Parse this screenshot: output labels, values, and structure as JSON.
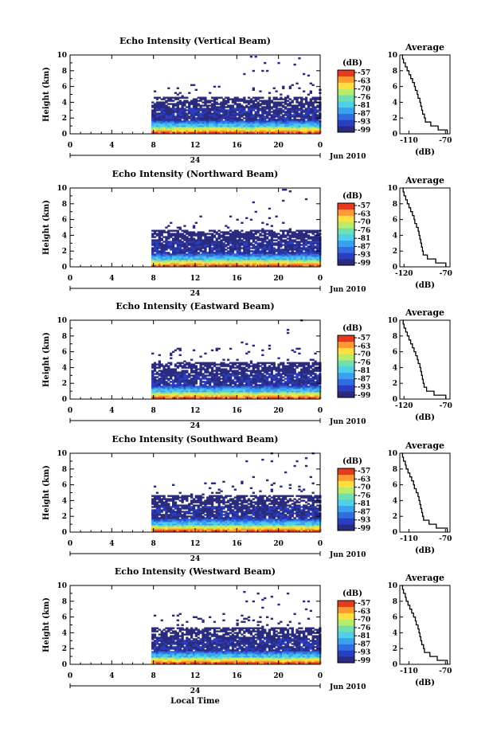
{
  "chart_data": [
    {
      "type": "heatmap",
      "title": "Echo Intensity (Vertical Beam)",
      "ylabel": "Height (km)",
      "xlim": [
        0,
        24
      ],
      "ylim": [
        0,
        10
      ],
      "x_ticks": [
        "0",
        "4",
        "8",
        "12",
        "16",
        "20",
        "0"
      ],
      "y_ticks": [
        "0",
        "2",
        "4",
        "6",
        "8",
        "10"
      ],
      "date_center": "24",
      "date_label": "Jun 2010",
      "colorbar": {
        "unit": "(dB)",
        "ticks": [
          "-57",
          "-63",
          "-70",
          "-76",
          "-81",
          "-87",
          "-93",
          "-99"
        ]
      },
      "profile": {
        "title": "Average",
        "xlabel": "(dB)",
        "x_ticks": [
          "-110",
          "-70"
        ],
        "xlim": [
          -120,
          -65
        ],
        "heights": [
          0,
          0.5,
          1,
          1.5,
          2,
          2.5,
          3,
          3.5,
          4,
          4.5,
          5,
          5.5,
          6,
          6.5,
          7,
          7.5,
          8,
          8.5,
          9,
          9.5,
          10
        ],
        "values": [
          -68,
          -78,
          -86,
          -92,
          -93,
          -95,
          -96,
          -97,
          -98,
          -100,
          -101,
          -103,
          -104,
          -106,
          -108,
          -110,
          -112,
          -114,
          -116,
          -117,
          -118
        ]
      }
    },
    {
      "type": "heatmap",
      "title": "Echo Intensity (Northward Beam)",
      "ylabel": "Height (km)",
      "xlim": [
        0,
        24
      ],
      "ylim": [
        0,
        10
      ],
      "x_ticks": [
        "0",
        "4",
        "8",
        "12",
        "16",
        "20",
        "0"
      ],
      "y_ticks": [
        "0",
        "2",
        "4",
        "6",
        "8",
        "10"
      ],
      "date_center": "24",
      "date_label": "Jun 2010",
      "colorbar": {
        "unit": "(dB)",
        "ticks": [
          "-57",
          "-63",
          "-70",
          "-76",
          "-81",
          "-87",
          "-93",
          "-99"
        ]
      },
      "profile": {
        "title": "Average",
        "xlabel": "(dB)",
        "x_ticks": [
          "-120",
          "-70"
        ],
        "xlim": [
          -125,
          -65
        ],
        "heights": [
          0,
          0.5,
          1,
          1.5,
          2,
          2.5,
          3,
          3.5,
          4,
          4.5,
          5,
          5.5,
          6,
          6.5,
          7,
          7.5,
          8,
          8.5,
          9,
          9.5,
          10
        ],
        "values": [
          -70,
          -82,
          -92,
          -97,
          -98,
          -99,
          -100,
          -101,
          -102,
          -103,
          -105,
          -107,
          -108,
          -110,
          -112,
          -114,
          -116,
          -118,
          -120,
          -121,
          -122
        ]
      }
    },
    {
      "type": "heatmap",
      "title": "Echo Intensity (Eastward Beam)",
      "ylabel": "Height (km)",
      "xlim": [
        0,
        24
      ],
      "ylim": [
        0,
        10
      ],
      "x_ticks": [
        "0",
        "4",
        "8",
        "12",
        "16",
        "20",
        "0"
      ],
      "y_ticks": [
        "0",
        "2",
        "4",
        "6",
        "8",
        "10"
      ],
      "date_center": "24",
      "date_label": "Jun 2010",
      "colorbar": {
        "unit": "(dB)",
        "ticks": [
          "-57",
          "-63",
          "-70",
          "-76",
          "-81",
          "-87",
          "-93",
          "-99"
        ]
      },
      "profile": {
        "title": "Average",
        "xlabel": "(dB)",
        "x_ticks": [
          "-120",
          "-70"
        ],
        "xlim": [
          -125,
          -65
        ],
        "heights": [
          0,
          0.5,
          1,
          1.5,
          2,
          2.5,
          3,
          3.5,
          4,
          4.5,
          5,
          5.5,
          6,
          6.5,
          7,
          7.5,
          8,
          8.5,
          9,
          9.5,
          10
        ],
        "values": [
          -70,
          -84,
          -93,
          -96,
          -97,
          -98,
          -99,
          -100,
          -101,
          -103,
          -104,
          -106,
          -108,
          -110,
          -112,
          -114,
          -116,
          -118,
          -120,
          -121,
          -122
        ]
      }
    },
    {
      "type": "heatmap",
      "title": "Echo Intensity (Southward Beam)",
      "ylabel": "Height (km)",
      "xlim": [
        0,
        24
      ],
      "ylim": [
        0,
        10
      ],
      "x_ticks": [
        "0",
        "4",
        "8",
        "12",
        "16",
        "20",
        "0"
      ],
      "y_ticks": [
        "0",
        "2",
        "4",
        "6",
        "8",
        "10"
      ],
      "date_center": "24",
      "date_label": "Jun 2010",
      "colorbar": {
        "unit": "(dB)",
        "ticks": [
          "-57",
          "-63",
          "-70",
          "-76",
          "-81",
          "-87",
          "-93",
          "-99"
        ]
      },
      "profile": {
        "title": "Average",
        "xlabel": "(dB)",
        "x_ticks": [
          "-110",
          "-70"
        ],
        "xlim": [
          -120,
          -65
        ],
        "heights": [
          0,
          0.5,
          1,
          1.5,
          2,
          2.5,
          3,
          3.5,
          4,
          4.5,
          5,
          5.5,
          6,
          6.5,
          7,
          7.5,
          8,
          8.5,
          9,
          9.5,
          10
        ],
        "values": [
          -68,
          -80,
          -88,
          -94,
          -95,
          -96,
          -97,
          -98,
          -99,
          -100,
          -102,
          -104,
          -105,
          -107,
          -109,
          -111,
          -113,
          -114,
          -116,
          -117,
          -118
        ]
      }
    },
    {
      "type": "heatmap",
      "title": "Echo Intensity (Westward Beam)",
      "ylabel": "Height (km)",
      "xlabel": "Local Time",
      "xlim": [
        0,
        24
      ],
      "ylim": [
        0,
        10
      ],
      "x_ticks": [
        "0",
        "4",
        "8",
        "12",
        "16",
        "20",
        "0"
      ],
      "y_ticks": [
        "0",
        "2",
        "4",
        "6",
        "8",
        "10"
      ],
      "date_center": "24",
      "date_label": "Jun 2010",
      "colorbar": {
        "unit": "(dB)",
        "ticks": [
          "-57",
          "-63",
          "-70",
          "-76",
          "-81",
          "-87",
          "-93",
          "-99"
        ]
      },
      "profile": {
        "title": "Average",
        "xlabel": "(dB)",
        "x_ticks": [
          "-110",
          "-70"
        ],
        "xlim": [
          -120,
          -65
        ],
        "heights": [
          0,
          0.5,
          1,
          1.5,
          2,
          2.5,
          3,
          3.5,
          4,
          4.5,
          5,
          5.5,
          6,
          6.5,
          7,
          7.5,
          8,
          8.5,
          9,
          9.5,
          10
        ],
        "values": [
          -68,
          -79,
          -87,
          -93,
          -94,
          -96,
          -97,
          -98,
          -99,
          -100,
          -102,
          -103,
          -105,
          -107,
          -109,
          -111,
          -113,
          -114,
          -116,
          -117,
          -118
        ]
      }
    }
  ],
  "colors": {
    "colormap": [
      "#2a2a7e",
      "#2b3ec2",
      "#2f6ee0",
      "#3aa0f0",
      "#4fd0e8",
      "#70e0b0",
      "#b8ec6a",
      "#ffe040",
      "#ff9a30",
      "#e63a1e"
    ]
  }
}
